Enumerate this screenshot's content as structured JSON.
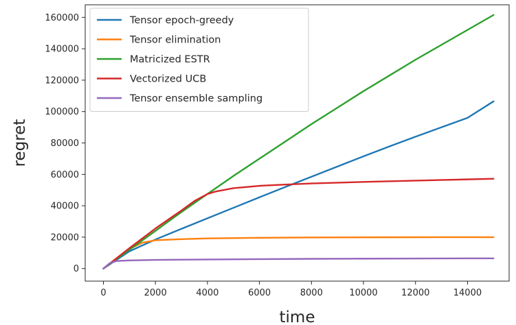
{
  "chart_data": {
    "type": "line",
    "xlabel": "time",
    "ylabel": "regret",
    "xlim": [
      -700,
      15600
    ],
    "ylim": [
      -8000,
      168000
    ],
    "xticks": [
      0,
      2000,
      4000,
      6000,
      8000,
      10000,
      12000,
      14000
    ],
    "yticks": [
      0,
      20000,
      40000,
      60000,
      80000,
      100000,
      120000,
      140000,
      160000
    ],
    "grid": false,
    "legend_position": "top-left",
    "series": [
      {
        "name": "Tensor epoch-greedy",
        "color": "#1f77b4",
        "x": [
          0,
          500,
          1000,
          2000,
          3000,
          4000,
          5000,
          6000,
          7000,
          8000,
          9000,
          10000,
          11000,
          12000,
          13000,
          14000,
          15000
        ],
        "y": [
          0,
          5500,
          11000,
          18500,
          25300,
          32000,
          38700,
          45400,
          52000,
          58500,
          65000,
          71500,
          77800,
          84000,
          90000,
          96000,
          106500
        ]
      },
      {
        "name": "Tensor elimination",
        "color": "#ff7f0e",
        "x": [
          0,
          500,
          1000,
          1500,
          2000,
          2500,
          3000,
          4000,
          6000,
          8000,
          10000,
          12000,
          14000,
          15000
        ],
        "y": [
          0,
          6500,
          12500,
          16500,
          18000,
          18400,
          18700,
          19200,
          19600,
          19800,
          19900,
          19950,
          20000,
          20000
        ]
      },
      {
        "name": "Matricized ESTR",
        "color": "#2ca02c",
        "x": [
          0,
          1000,
          2000,
          3000,
          4000,
          5000,
          6000,
          7000,
          8000,
          9000,
          10000,
          11000,
          12000,
          13000,
          14000,
          15000
        ],
        "y": [
          0,
          12000,
          24000,
          36000,
          47500,
          59000,
          70000,
          81000,
          92000,
          102500,
          113000,
          123000,
          133000,
          142500,
          152000,
          161500
        ]
      },
      {
        "name": "Vectorized UCB",
        "color": "#d62728",
        "x": [
          0,
          1000,
          2000,
          3000,
          3500,
          4000,
          4300,
          5000,
          6000,
          7000,
          8000,
          10000,
          12000,
          14000,
          15000
        ],
        "y": [
          0,
          13000,
          25500,
          37000,
          43000,
          47500,
          49000,
          51200,
          52700,
          53500,
          54200,
          55200,
          56000,
          56800,
          57200
        ]
      },
      {
        "name": "Tensor ensemble sampling",
        "color": "#9467bd",
        "x": [
          0,
          250,
          500,
          1000,
          2000,
          4000,
          6000,
          8000,
          10000,
          12000,
          14000,
          15000
        ],
        "y": [
          0,
          3500,
          4800,
          5200,
          5500,
          5800,
          6000,
          6200,
          6300,
          6400,
          6500,
          6500
        ]
      }
    ]
  }
}
